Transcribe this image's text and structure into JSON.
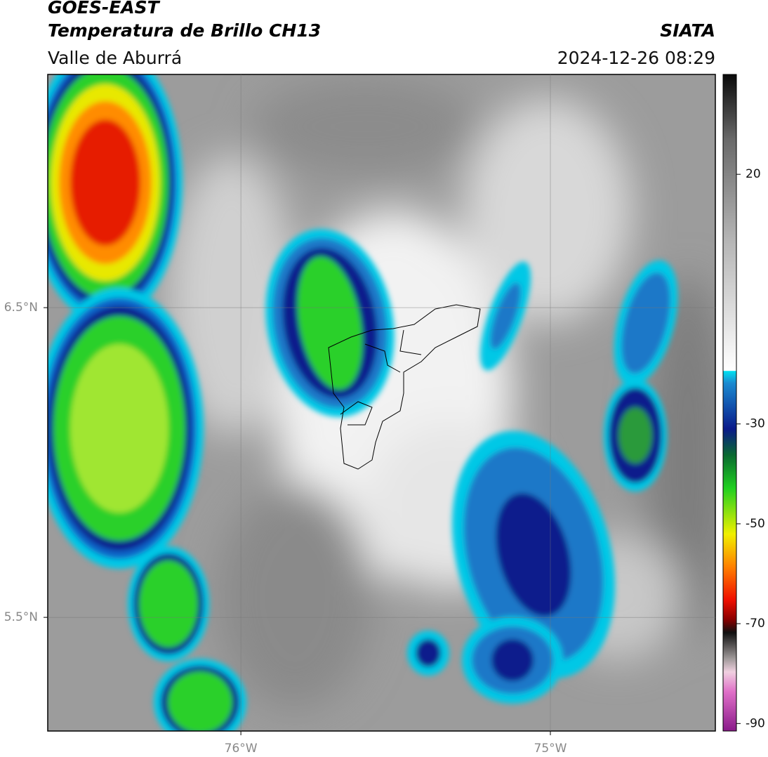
{
  "header": {
    "title": "GOES-EAST",
    "subtitle": "Temperatura de Brillo CH13",
    "source": "SIATA",
    "region": "Valle de Aburrá",
    "datetime": "2024-12-26 08:29"
  },
  "map": {
    "xlim": [
      -76.624,
      -74.467
    ],
    "ylim": [
      5.133,
      7.253
    ],
    "xticks": [
      {
        "value": -76,
        "label": "76°W"
      },
      {
        "value": -75,
        "label": "75°W"
      }
    ],
    "yticks": [
      {
        "value": 6.5,
        "label": "6.5°N"
      },
      {
        "value": 5.5,
        "label": "5.5°N"
      }
    ],
    "grid": true
  },
  "colorbar": {
    "clim": [
      -91.5,
      40
    ],
    "ticks": [
      20,
      -30,
      -50,
      -70,
      -90
    ]
  }
}
